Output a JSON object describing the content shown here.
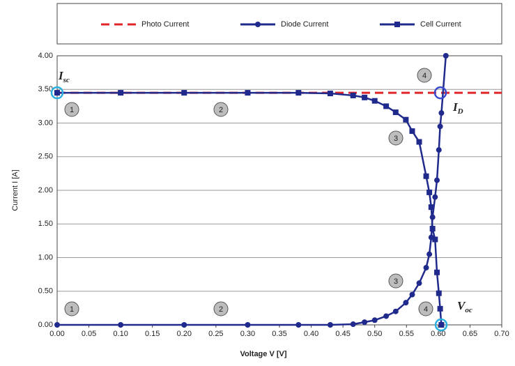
{
  "chart_data": {
    "type": "line",
    "xlabel": "Voltage V  [V]",
    "ylabel": "Current I [A]",
    "xlim": [
      0,
      0.7
    ],
    "ylim": [
      0,
      4
    ],
    "xticks": [
      {
        "value": 0,
        "label": "0.00"
      },
      {
        "value": 0.05,
        "label": "0.05"
      },
      {
        "value": 0.1,
        "label": "0.10"
      },
      {
        "value": 0.15,
        "label": "0.15"
      },
      {
        "value": 0.2,
        "label": "0.20"
      },
      {
        "value": 0.25,
        "label": "0.25"
      },
      {
        "value": 0.3,
        "label": "0.30"
      },
      {
        "value": 0.35,
        "label": "0.35"
      },
      {
        "value": 0.4,
        "label": "0.40"
      },
      {
        "value": 0.45,
        "label": "0.45"
      },
      {
        "value": 0.5,
        "label": "0.50"
      },
      {
        "value": 0.55,
        "label": "0.55"
      },
      {
        "value": 0.6,
        "label": "0.60"
      },
      {
        "value": 0.65,
        "label": "0.65"
      },
      {
        "value": 0.7,
        "label": "0.70"
      }
    ],
    "yticks": [
      {
        "value": 0,
        "label": "0.00"
      },
      {
        "value": 0.5,
        "label": "0.50"
      },
      {
        "value": 1,
        "label": "1.00"
      },
      {
        "value": 1.5,
        "label": "1.50"
      },
      {
        "value": 2,
        "label": "2.00"
      },
      {
        "value": 2.5,
        "label": "2.50"
      },
      {
        "value": 3,
        "label": "3.00"
      },
      {
        "value": 3.5,
        "label": "3.50"
      },
      {
        "value": 4,
        "label": "4.00"
      }
    ],
    "grid": true,
    "legend": "top",
    "series": [
      {
        "name": "Photo Current",
        "color": "#e0262b",
        "dashed": true,
        "marker": "none",
        "x": [
          0,
          0.7
        ],
        "values": [
          3.45,
          3.45
        ]
      },
      {
        "name": "Diode Current",
        "color": "#1f2a8c",
        "dashed": false,
        "marker": "circle",
        "x": [
          0,
          0.1,
          0.2,
          0.3,
          0.38,
          0.43,
          0.466,
          0.484,
          0.5,
          0.518,
          0.533,
          0.549,
          0.559,
          0.57,
          0.581,
          0.586,
          0.589,
          0.591,
          0.595,
          0.598,
          0.601,
          0.603,
          0.605,
          0.612
        ],
        "values": [
          0,
          0,
          0,
          0,
          0,
          0,
          0.01,
          0.04,
          0.07,
          0.13,
          0.2,
          0.33,
          0.45,
          0.62,
          0.85,
          1.05,
          1.3,
          1.6,
          1.9,
          2.15,
          2.6,
          2.95,
          3.15,
          4.0
        ]
      },
      {
        "name": "Cell Current",
        "color": "#1f2a8c",
        "dashed": false,
        "marker": "square",
        "x": [
          0,
          0.1,
          0.2,
          0.3,
          0.38,
          0.43,
          0.466,
          0.484,
          0.5,
          0.518,
          0.533,
          0.549,
          0.559,
          0.57,
          0.581,
          0.586,
          0.589,
          0.591,
          0.595,
          0.598,
          0.601,
          0.603,
          0.605
        ],
        "values": [
          3.45,
          3.45,
          3.45,
          3.45,
          3.45,
          3.44,
          3.41,
          3.38,
          3.33,
          3.25,
          3.16,
          3.05,
          2.88,
          2.72,
          2.21,
          1.97,
          1.75,
          1.43,
          1.27,
          0.78,
          0.47,
          0.24,
          0
        ]
      }
    ],
    "annotations": [
      {
        "text": "I",
        "subscript": "sc"
      },
      {
        "text": "I",
        "subscript": "D"
      },
      {
        "text": "V",
        "subscript": "oc"
      }
    ],
    "region_labels": [
      "1",
      "2",
      "3",
      "4",
      "1",
      "2",
      "3",
      "4"
    ]
  }
}
